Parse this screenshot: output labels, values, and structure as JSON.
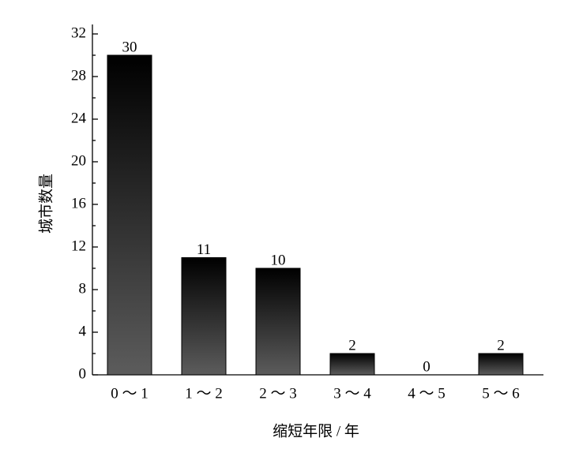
{
  "chart_data": {
    "type": "bar",
    "categories": [
      "0 ～ 1",
      "1 ～ 2",
      "2 ～ 3",
      "3 ～ 4",
      "4 ～ 5",
      "5 ～ 6"
    ],
    "values": [
      30,
      11,
      10,
      2,
      0,
      2
    ],
    "gradient": [
      "#000000",
      "#5c5c5c"
    ],
    "xlabel": "缩短年限 / 年",
    "ylabel": "城市数量",
    "ylim": [
      0,
      32
    ],
    "yticks": [
      0,
      4,
      8,
      12,
      16,
      20,
      24,
      28,
      32
    ],
    "minor_yticks": [
      2,
      6,
      10,
      14,
      18,
      22,
      26,
      30
    ]
  }
}
